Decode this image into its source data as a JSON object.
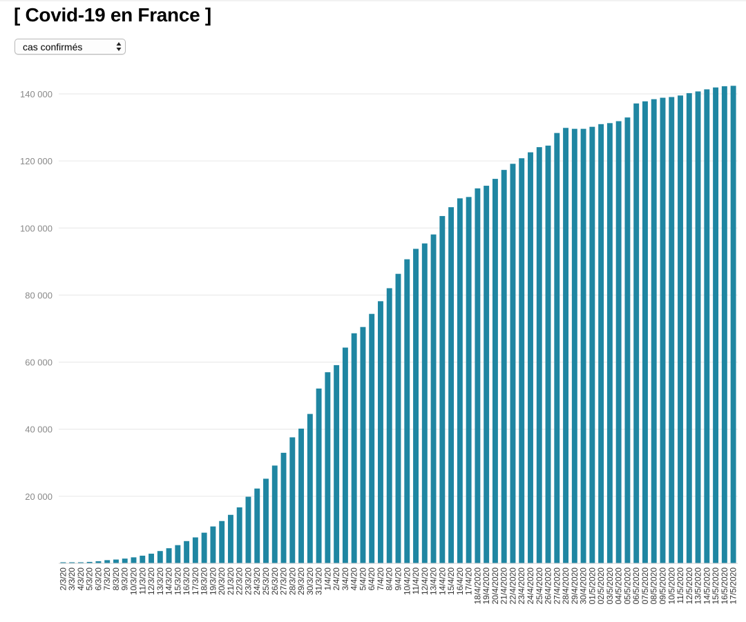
{
  "page": {
    "title": "[ Covid-19 en France ]"
  },
  "selector": {
    "selected": "cas confirmés"
  },
  "colors": {
    "bar": "#1f86a2",
    "grid": "#e6e6e6",
    "tick_label": "#888888"
  },
  "chart_data": {
    "type": "bar",
    "ylim": [
      0,
      140000
    ],
    "yticks": [
      20000,
      40000,
      60000,
      80000,
      100000,
      120000,
      140000
    ],
    "ytick_labels": [
      "20 000",
      "40 000",
      "60 000",
      "80 000",
      "100 000",
      "120 000",
      "140 000"
    ],
    "grid": true,
    "categories": [
      "2/3/20",
      "3/3/20",
      "4/3/20",
      "5/3/20",
      "6/3/20",
      "7/3/20",
      "8/3/20",
      "9/3/20",
      "10/3/20",
      "11/3/20",
      "12/3/20",
      "13/3/20",
      "14/3/20",
      "15/3/20",
      "16/3/20",
      "17/3/20",
      "18/3/20",
      "19/3/20",
      "20/3/20",
      "21/3/20",
      "22/3/20",
      "23/3/20",
      "24/3/20",
      "25/3/20",
      "26/3/20",
      "27/3/20",
      "28/3/20",
      "29/3/20",
      "30/3/20",
      "31/3/20",
      "1/4/20",
      "2/4/20",
      "3/4/20",
      "4/4/20",
      "5/4/20",
      "6/4/20",
      "7/4/20",
      "8/4/20",
      "9/4/20",
      "10/4/20",
      "11/4/20",
      "12/4/20",
      "13/4/20",
      "14/4/20",
      "15/4/20",
      "16/4/20",
      "17/4/20",
      "18/4/2020",
      "19/4/2020",
      "20/4/2020",
      "21/4/2020",
      "22/4/2020",
      "23/4/2020",
      "24/4/2020",
      "25/4/2020",
      "26/4/2020",
      "27/4/2020",
      "28/4/2020",
      "29/4/2020",
      "30/4/2020",
      "01/5/2020",
      "02/5/2020",
      "03/5/2020",
      "04/5/2020",
      "05/5/2020",
      "06/5/2020",
      "07/5/2020",
      "08/5/2020",
      "09/5/2020",
      "10/5/2020",
      "11/5/2020",
      "12/5/2020",
      "13/5/2020",
      "14/5/2020",
      "15/5/2020",
      "16/5/2020",
      "17/5/2020"
    ],
    "values": [
      191,
      212,
      285,
      423,
      613,
      949,
      1126,
      1412,
      1784,
      2281,
      2876,
      3661,
      4499,
      5423,
      6633,
      7730,
      9134,
      10995,
      12612,
      14459,
      16689,
      19856,
      22302,
      25233,
      29155,
      32964,
      37575,
      40174,
      44550,
      52128,
      56989,
      59105,
      64338,
      68605,
      70478,
      74390,
      78167,
      82048,
      86334,
      90676,
      93790,
      95403,
      98076,
      103573,
      106206,
      108847,
      109252,
      111821,
      112606,
      114657,
      117324,
      119151,
      120804,
      122577,
      124114,
      124575,
      128339,
      129859,
      129581,
      129581,
      130185,
      130979,
      131287,
      131863,
      132967,
      137150,
      137779,
      138421,
      138854,
      139063,
      139519,
      140227,
      140734,
      141356,
      141919,
      142291,
      142411
    ]
  }
}
